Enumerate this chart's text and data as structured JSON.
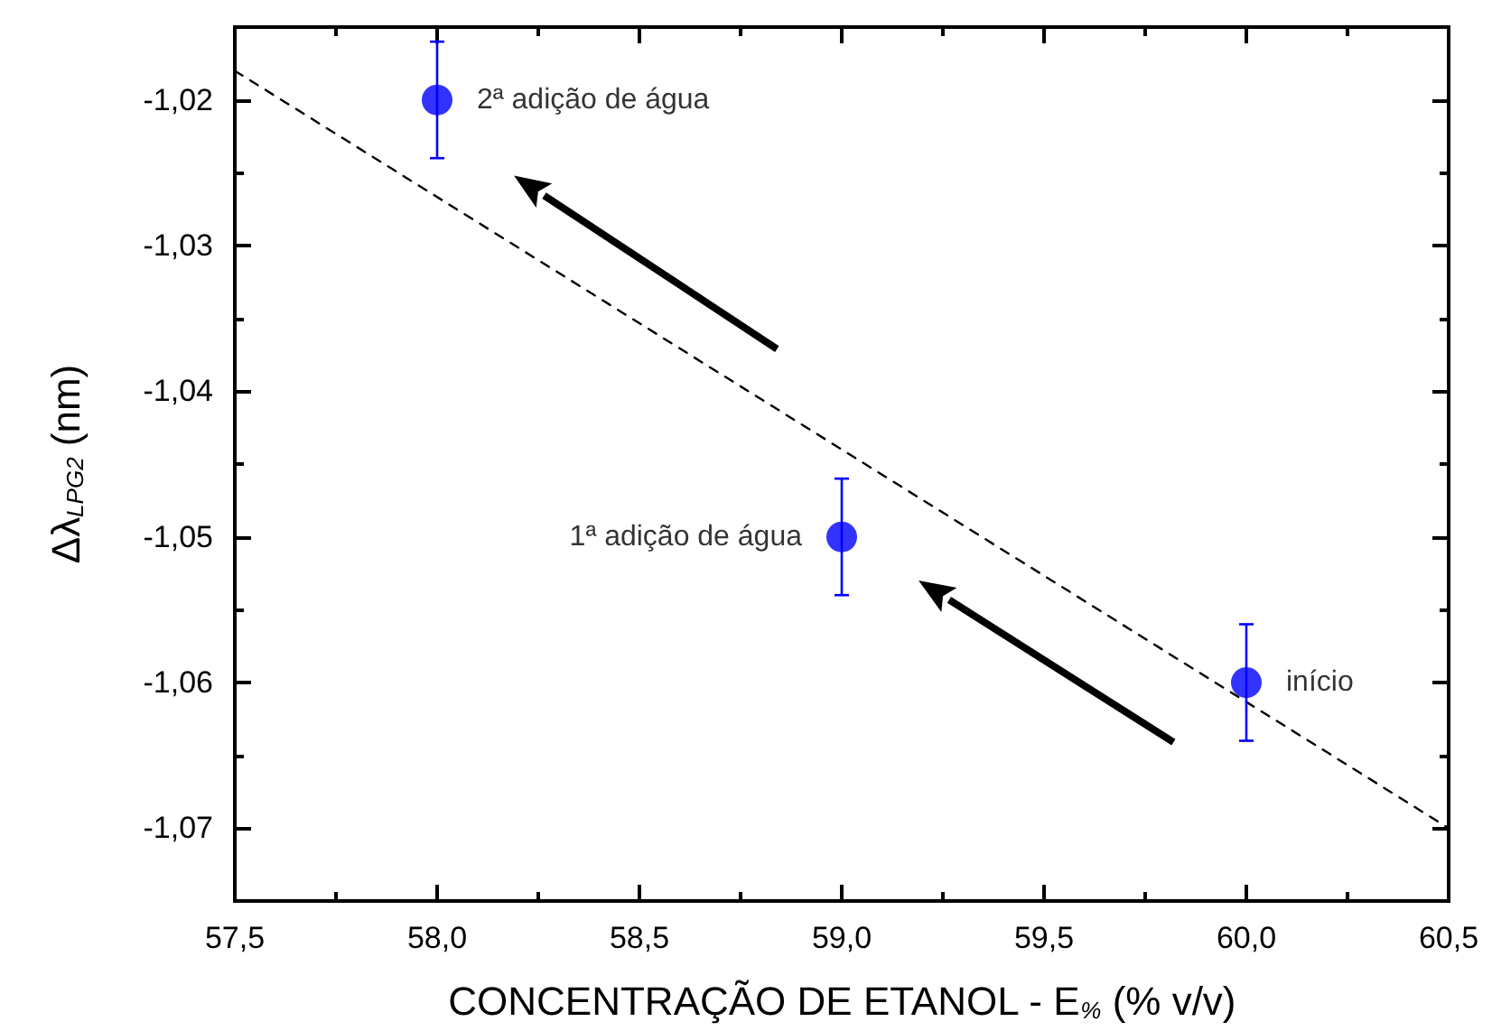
{
  "chart_data": {
    "type": "scatter",
    "xlabel": "CONCENTRAÇÃO DE ETANOL - E$_{%}$ (% v/v)",
    "ylabel": "Δλ$_{LPG2}$ (nm)",
    "xlim": [
      57.5,
      60.5
    ],
    "xticks": [
      {
        "value": 57.5,
        "label": "57,5"
      },
      {
        "value": 58,
        "label": "58,0"
      },
      {
        "value": 58.5,
        "label": "58,5"
      },
      {
        "value": 59,
        "label": "59,0"
      },
      {
        "value": 59.5,
        "label": "59,5"
      },
      {
        "value": 60,
        "label": "60,0"
      },
      {
        "value": 60.5,
        "label": "60,5"
      }
    ],
    "ylim": [
      -1.075,
      -1.015
    ],
    "yticks": [
      {
        "value": -1.07,
        "label": "-1,07"
      },
      {
        "value": -1.06,
        "label": "-1,06"
      },
      {
        "value": -1.05,
        "label": "-1,05"
      },
      {
        "value": -1.04,
        "label": "-1,04"
      },
      {
        "value": -1.03,
        "label": "-1,03"
      },
      {
        "value": -1.02,
        "label": "-1,02"
      }
    ],
    "grid": false,
    "marker": "circle",
    "series": [
      {
        "color": "#0000ff",
        "x": [
          58,
          59,
          60
        ],
        "values": [
          -1.02,
          -1.05,
          -1.06
        ],
        "errors": [
          0.004,
          0.004,
          0.004
        ]
      },
      {
        "type": "line",
        "color": "#000000",
        "line_style": "dashed",
        "marker": "none",
        "x": [
          57.5,
          60.5
        ],
        "values": [
          -1.018,
          -1.07
        ]
      }
    ],
    "annotations": [
      {
        "text": "2ª adição de água",
        "x": 58,
        "y": -1.02
      },
      {
        "text": "1ª adição de água",
        "x": 59,
        "y": -1.05
      },
      {
        "text": "início",
        "x": 60,
        "y": -1.06
      }
    ]
  }
}
